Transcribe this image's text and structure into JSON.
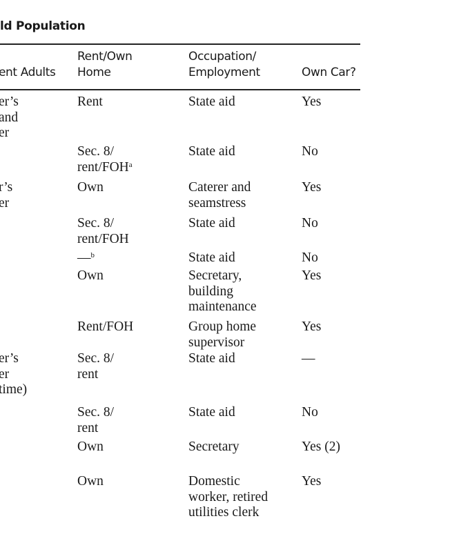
{
  "title": "ld Population",
  "headers": [
    "ent Adults",
    "Rent/Own\nHome",
    "Occupation/\nEmployment",
    "Own Car?"
  ],
  "rows": [
    {
      "adults": "er’s\nand\ner",
      "home": "Rent",
      "home_sup": "",
      "occupation": "State aid",
      "car": "Yes"
    },
    {
      "adults": "",
      "home": "Sec. 8/\nrent/FOH",
      "home_sup": "a",
      "occupation": "State aid",
      "car": "No"
    },
    {
      "adults": "r’s\ner",
      "home": "Own",
      "home_sup": "",
      "occupation": "Caterer and\nseamstress",
      "car": "Yes"
    },
    {
      "adults": "",
      "home": "Sec. 8/\nrent/FOH",
      "home_sup": "",
      "occupation": "State aid",
      "car": "No"
    },
    {
      "adults": "",
      "home": "—",
      "home_sup": "b",
      "occupation": "State aid",
      "car": "No"
    },
    {
      "adults": "",
      "home": "Own",
      "home_sup": "",
      "occupation": "Secretary,\nbuilding\nmaintenance",
      "car": "Yes"
    },
    {
      "adults": "",
      "home": "Rent/FOH",
      "home_sup": "",
      "occupation": "Group home\nsupervisor",
      "car": "Yes"
    },
    {
      "adults": "er’s\ner\ntime)",
      "home": "Sec. 8/\nrent",
      "home_sup": "",
      "occupation": "State aid",
      "car": "—"
    },
    {
      "adults": "",
      "home": "Sec. 8/\nrent",
      "home_sup": "",
      "occupation": "State aid",
      "car": "No"
    },
    {
      "adults": "",
      "home": "Own",
      "home_sup": "",
      "occupation": "Secretary",
      "car": "Yes (2)"
    },
    {
      "adults": "",
      "home": "Own",
      "home_sup": "",
      "occupation": "Domestic\nworker, retired\nutilities clerk",
      "car": "Yes"
    }
  ]
}
